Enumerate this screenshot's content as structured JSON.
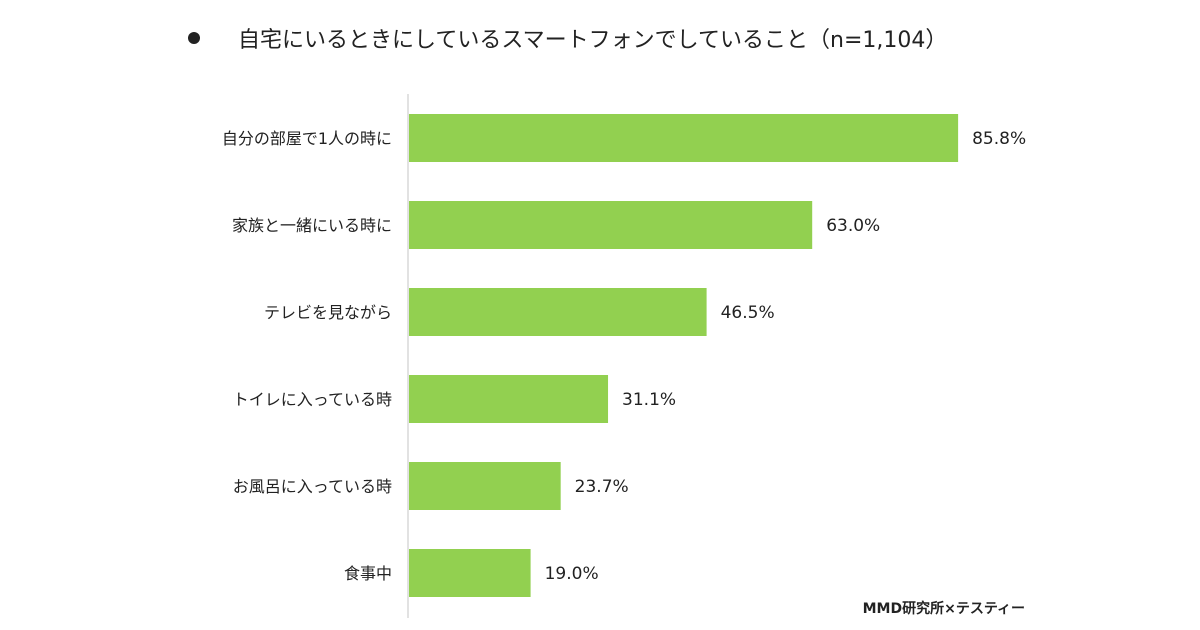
{
  "title": "自宅にいるときにしているスマートフォンでしていること（n=1,104）",
  "source": "MMD研究所×テスティー",
  "chart_data": {
    "type": "bar",
    "orientation": "horizontal",
    "categories": [
      "自分の部屋で1人の時に",
      "家族と一緒にいる時に",
      "テレビを見ながら",
      "トイレに入っている時",
      "お風呂に入っている時",
      "食事中"
    ],
    "values": [
      85.8,
      63.0,
      46.5,
      31.1,
      23.7,
      19.0
    ],
    "value_labels": [
      "85.8%",
      "63.0%",
      "46.5%",
      "31.1%",
      "23.7%",
      "19.0%"
    ],
    "xlim": [
      0,
      100
    ],
    "grid": false,
    "bar_color": "#92d050",
    "axis_color": "#d9d9d9"
  }
}
